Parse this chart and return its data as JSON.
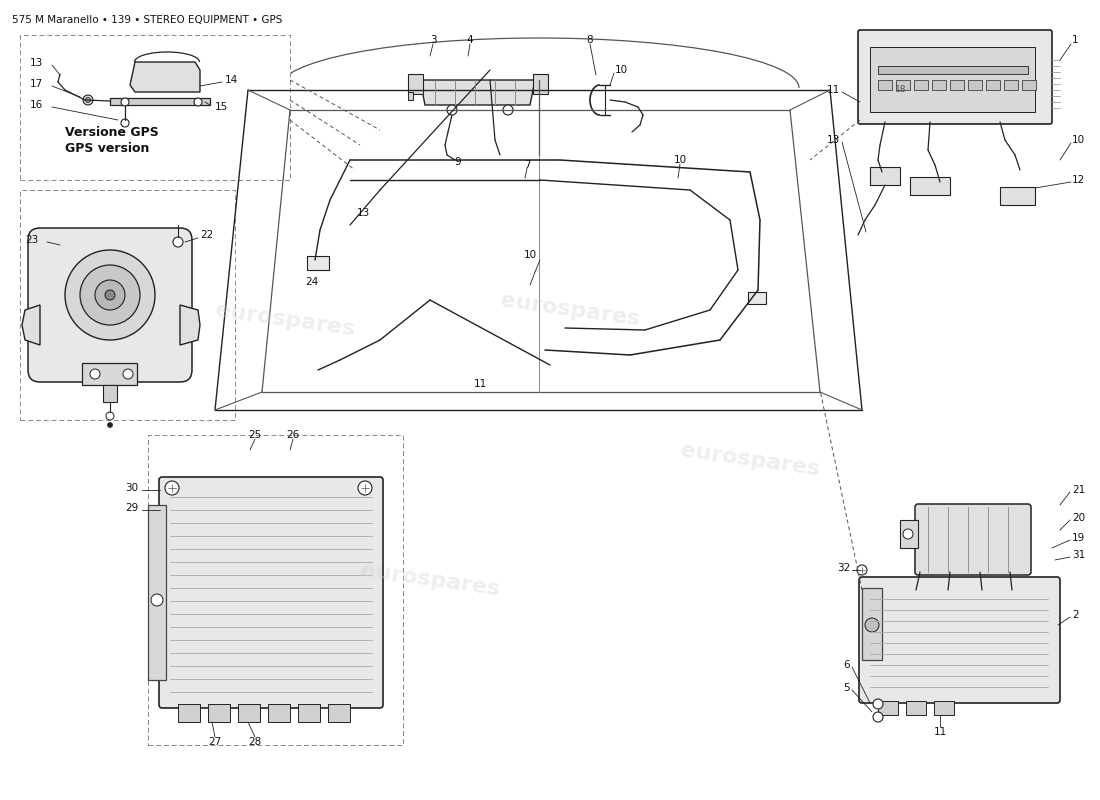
{
  "title": "575 M Maranello • 139 • STEREO EQUIPMENT • GPS",
  "bg": "#ffffff",
  "lc": "#222222",
  "lc2": "#555555",
  "watermark_color": "#d0d0d0",
  "watermark_alpha": 0.35,
  "gps_line1": "Versione GPS",
  "gps_line2": "GPS version",
  "fig_w": 11.0,
  "fig_h": 8.0,
  "dpi": 100
}
